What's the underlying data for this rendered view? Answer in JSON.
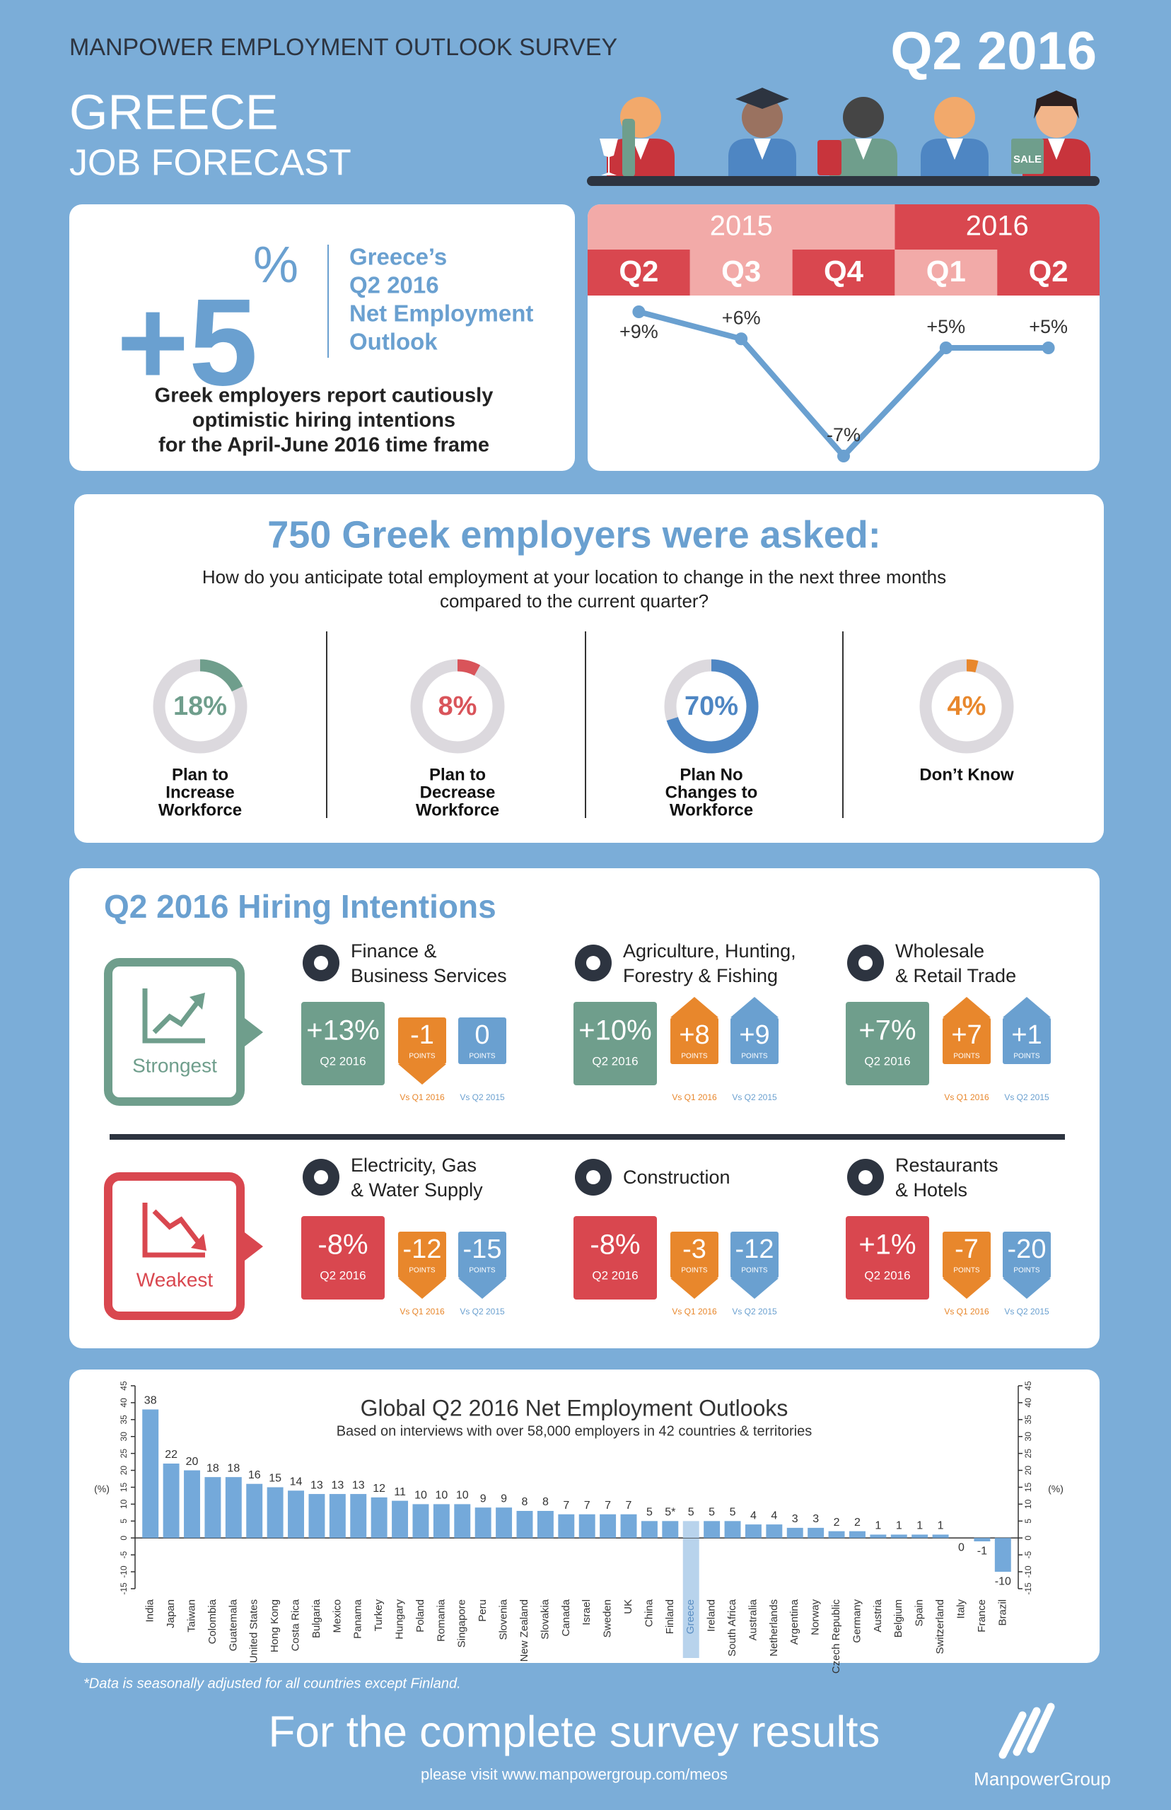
{
  "header": {
    "survey": "MANPOWER EMPLOYMENT OUTLOOK SURVEY",
    "period": "Q2 2016",
    "country": "GREECE",
    "subtitle": "JOB FORECAST"
  },
  "illustration": {
    "sign": "SALE"
  },
  "outlook": {
    "value": "+5",
    "unit": "%",
    "label": [
      "Greece’s",
      "Q2 2016",
      "Net Employment",
      "Outlook"
    ],
    "description": [
      "Greek employers report cautiously",
      "optimistic hiring intentions",
      "for the April-June 2016 time frame"
    ]
  },
  "survey": {
    "title": "750 Greek employers were asked:",
    "question": [
      "How do you anticipate total employment at your location to change in the next three months",
      "compared to the current quarter?"
    ]
  },
  "hiring": {
    "title": "Q2 2016 Hiring Intentions",
    "strongest": "Strongest",
    "weakest": "Weakest",
    "period": "Q2 2016",
    "points": "POINTS",
    "vs_q1": "Vs Q1 2016",
    "vs_q2": "Vs Q2 2015",
    "strong_sectors": [
      {
        "name": [
          "Finance &",
          "Business Services"
        ],
        "outlook": "+13%",
        "change_q1": "-1",
        "change_q2": "0"
      },
      {
        "name": [
          "Agriculture, Hunting,",
          "Forestry & Fishing"
        ],
        "outlook": "+10%",
        "change_q1": "+8",
        "change_q2": "+9"
      },
      {
        "name": [
          "Wholesale",
          "& Retail Trade"
        ],
        "outlook": "+7%",
        "change_q1": "+7",
        "change_q2": "+1"
      }
    ],
    "weak_sectors": [
      {
        "name": [
          "Electricity, Gas",
          "& Water Supply"
        ],
        "outlook": "-8%",
        "change_q1": "-12",
        "change_q2": "-15"
      },
      {
        "name": [
          "Construction"
        ],
        "outlook": "-8%",
        "change_q1": "-3",
        "change_q2": "-12"
      },
      {
        "name": [
          "Restaurants",
          "& Hotels"
        ],
        "outlook": "+1%",
        "change_q1": "-7",
        "change_q2": "-20"
      }
    ]
  },
  "footnote": "*Data is seasonally adjusted for all countries except Finland.",
  "footer": {
    "cta": "For the complete survey results",
    "url": "please visit www.manpowergroup.com/meos",
    "brand": "ManpowerGroup"
  },
  "chart_data": [
    {
      "type": "line",
      "groups": [
        "2015",
        "2016"
      ],
      "categories": [
        "Q2",
        "Q3",
        "Q4",
        "Q1",
        "Q2"
      ],
      "values": [
        9,
        6,
        -7,
        5,
        5
      ],
      "value_labels": [
        "+9%",
        "+6%",
        "-7%",
        "+5%",
        "+5%"
      ],
      "color": "#6aa0d0"
    },
    {
      "type": "donut",
      "values": [
        18
      ],
      "value_labels": [
        "18%"
      ],
      "label": [
        "Plan to",
        "Increase",
        "Workforce"
      ],
      "color": "#6f9e8c"
    },
    {
      "type": "donut",
      "values": [
        8
      ],
      "value_labels": [
        "8%"
      ],
      "label": [
        "Plan to",
        "Decrease",
        "Workforce"
      ],
      "color": "#d9545a"
    },
    {
      "type": "donut",
      "values": [
        70
      ],
      "value_labels": [
        "70%"
      ],
      "label": [
        "Plan No",
        "Changes to",
        "Workforce"
      ],
      "color": "#4e86c3"
    },
    {
      "type": "donut",
      "values": [
        4
      ],
      "value_labels": [
        "4%"
      ],
      "label": [
        "Don’t Know"
      ],
      "color": "#e8872c"
    },
    {
      "type": "bar",
      "title": "Global Q2 2016 Net Employment Outlooks",
      "subtitle": "Based on interviews with over 58,000 employers in 42 countries & territories",
      "ylabel": "(%)",
      "categories": [
        "India",
        "Japan",
        "Taiwan",
        "Colombia",
        "Guatemala",
        "United States",
        "Hong Kong",
        "Costa Rica",
        "Bulgaria",
        "Mexico",
        "Panama",
        "Turkey",
        "Hungary",
        "Poland",
        "Romania",
        "Singapore",
        "Peru",
        "Slovenia",
        "New Zealand",
        "Slovakia",
        "Canada",
        "Israel",
        "Sweden",
        "UK",
        "China",
        "Finland",
        "Greece",
        "Ireland",
        "South Africa",
        "Australia",
        "Netherlands",
        "Argentina",
        "Norway",
        "Czech Republic",
        "Germany",
        "Austria",
        "Belgium",
        "Spain",
        "Switzerland",
        "Italy",
        "France",
        "Brazil"
      ],
      "values": [
        38,
        22,
        20,
        18,
        18,
        16,
        15,
        14,
        13,
        13,
        13,
        12,
        11,
        10,
        10,
        10,
        9,
        9,
        8,
        8,
        7,
        7,
        7,
        7,
        5,
        5,
        5,
        5,
        5,
        4,
        4,
        3,
        3,
        2,
        2,
        1,
        1,
        1,
        1,
        0,
        -1,
        -10
      ],
      "value_labels": [
        "38",
        "22",
        "20",
        "18",
        "18",
        "16",
        "15",
        "14",
        "13",
        "13",
        "13",
        "12",
        "11",
        "10",
        "10",
        "10",
        "9",
        "9",
        "8",
        "8",
        "7",
        "7",
        "7",
        "7",
        "5",
        "5*",
        "5",
        "5",
        "5",
        "4",
        "4",
        "3",
        "3",
        "2",
        "2",
        "1",
        "1",
        "1",
        "1",
        "0",
        "-1",
        "-10"
      ],
      "color": "#74a9da",
      "highlight": "Greece",
      "highlight_color": "#b8d3ec",
      "ylim": [
        -15,
        45
      ],
      "yticks": [
        -15,
        -10,
        -5,
        0,
        5,
        10,
        15,
        20,
        25,
        30,
        35,
        40,
        45
      ],
      "right_axis": true
    }
  ]
}
